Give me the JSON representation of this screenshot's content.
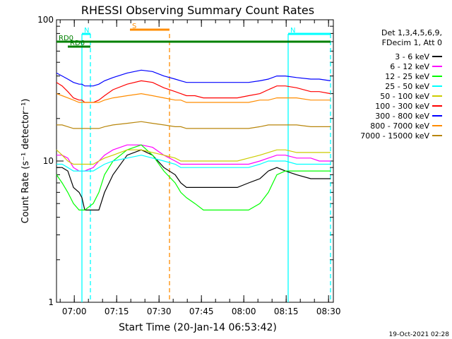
{
  "chart_data": {
    "type": "line",
    "title": "RHESSI Observing Summary Count Rates",
    "xlabel": "Start Time (20-Jan-14 06:53:42)",
    "ylabel": "Count Rate (s⁻¹ detector⁻¹)",
    "y_scale": "log",
    "ylim": [
      1,
      100
    ],
    "xlim_minutes_after_0653_42": [
      0,
      98
    ],
    "x_tick_labels": [
      "07:00",
      "07:15",
      "07:30",
      "07:45",
      "08:00",
      "08:15",
      "08:30"
    ],
    "y_tick_labels": [
      "1",
      "10",
      "100"
    ],
    "background": "#ffffff",
    "axis_color": "#000000",
    "legend": {
      "placement": "right",
      "header_lines": [
        "Det 1,3,4,5,6,9,",
        "FDecim 1, Att 0"
      ]
    },
    "series": [
      {
        "name": "3 - 6 keV",
        "color": "#000000",
        "x": [
          0,
          2,
          4,
          6,
          8,
          9,
          10,
          13,
          15,
          17,
          20,
          25,
          30,
          34,
          38,
          42,
          44,
          46,
          49,
          52,
          56,
          60,
          64,
          68,
          72,
          75,
          78,
          81,
          85,
          90,
          93,
          97
        ],
        "y": [
          9,
          9,
          8.5,
          6.5,
          6,
          5.5,
          4.5,
          4.5,
          4.5,
          6,
          8,
          11,
          12,
          11,
          9,
          8,
          7,
          6.5,
          6.5,
          6.5,
          6.5,
          6.5,
          6.5,
          7,
          7.5,
          8.5,
          9,
          8.5,
          8,
          7.5,
          7.5,
          7.5
        ]
      },
      {
        "name": "6 - 12 keV",
        "color": "#ff00ff",
        "x": [
          0,
          2,
          4,
          6,
          8,
          9,
          10,
          13,
          15,
          17,
          20,
          25,
          30,
          34,
          38,
          42,
          44,
          46,
          49,
          52,
          56,
          60,
          64,
          68,
          72,
          75,
          78,
          81,
          85,
          90,
          93,
          97
        ],
        "y": [
          11,
          11,
          10.5,
          9,
          8.5,
          8.5,
          8.5,
          9,
          10,
          11,
          12,
          13,
          13,
          12.5,
          11,
          10,
          9.5,
          9.5,
          9.5,
          9.5,
          9.5,
          9.5,
          9.5,
          9.5,
          10,
          10.5,
          11,
          11,
          10.5,
          10.5,
          10,
          10
        ]
      },
      {
        "name": "12 - 25 keV",
        "color": "#00ff00",
        "x": [
          0,
          2,
          4,
          6,
          8,
          9,
          10,
          13,
          15,
          17,
          20,
          25,
          30,
          34,
          38,
          42,
          44,
          46,
          49,
          52,
          56,
          60,
          64,
          68,
          72,
          75,
          78,
          81,
          85,
          90,
          93,
          97
        ],
        "y": [
          8,
          7,
          6,
          5,
          4.5,
          4.5,
          4.5,
          5,
          6,
          8,
          10,
          12,
          13,
          11,
          8.5,
          7,
          6,
          5.5,
          5,
          4.5,
          4.5,
          4.5,
          4.5,
          4.5,
          5,
          6,
          8,
          8.5,
          8.5,
          8.5,
          8.5,
          8.5
        ]
      },
      {
        "name": "25 - 50 keV",
        "color": "#00ffff",
        "x": [
          0,
          2,
          4,
          6,
          8,
          9,
          10,
          13,
          15,
          17,
          20,
          25,
          30,
          34,
          38,
          42,
          44,
          46,
          49,
          52,
          56,
          60,
          64,
          68,
          72,
          75,
          78,
          81,
          85,
          90,
          93,
          97
        ],
        "y": [
          9.5,
          9.5,
          9,
          8.5,
          8.5,
          8.5,
          8.5,
          8.5,
          9,
          9.5,
          10,
          10.5,
          11,
          10.5,
          10,
          9.5,
          9,
          9,
          9,
          9,
          9,
          9,
          9,
          9,
          9.5,
          10,
          10,
          10,
          9.5,
          9.5,
          9.5,
          9.5
        ]
      },
      {
        "name": "50 - 100 keV",
        "color": "#cccc00",
        "x": [
          0,
          2,
          4,
          6,
          8,
          9,
          10,
          13,
          15,
          17,
          20,
          25,
          30,
          34,
          38,
          42,
          44,
          46,
          49,
          52,
          56,
          60,
          64,
          68,
          72,
          75,
          78,
          81,
          85,
          90,
          93,
          97
        ],
        "y": [
          12,
          11,
          10,
          9.5,
          9.5,
          9.5,
          9.5,
          9.5,
          10,
          10.5,
          11,
          12,
          12,
          11.5,
          11,
          10.5,
          10,
          10,
          10,
          10,
          10,
          10,
          10,
          10.5,
          11,
          11.5,
          12,
          12,
          11.5,
          11.5,
          11.5,
          11.5
        ]
      },
      {
        "name": "100 - 300 keV",
        "color": "#ff0000",
        "x": [
          0,
          2,
          4,
          6,
          8,
          9,
          10,
          13,
          15,
          17,
          20,
          25,
          30,
          34,
          38,
          42,
          44,
          46,
          49,
          52,
          56,
          60,
          64,
          68,
          72,
          75,
          78,
          81,
          85,
          90,
          93,
          97
        ],
        "y": [
          36,
          34,
          31,
          28,
          27,
          27,
          26,
          26,
          27,
          29,
          32,
          35,
          37,
          36,
          33,
          31,
          30,
          29,
          29,
          28,
          28,
          28,
          28,
          29,
          30,
          32,
          34,
          34,
          33,
          31,
          31,
          30
        ]
      },
      {
        "name": "300 - 800 keV",
        "color": "#0000ff",
        "x": [
          0,
          2,
          4,
          6,
          8,
          9,
          10,
          13,
          15,
          17,
          20,
          25,
          30,
          34,
          38,
          42,
          44,
          46,
          49,
          52,
          56,
          60,
          64,
          68,
          72,
          75,
          78,
          81,
          85,
          90,
          93,
          97
        ],
        "y": [
          42,
          40,
          38,
          36,
          35,
          35,
          34,
          34,
          35,
          37,
          39,
          42,
          44,
          43,
          40,
          38,
          37,
          36,
          36,
          36,
          36,
          36,
          36,
          36,
          37,
          38,
          40,
          40,
          39,
          38,
          38,
          37
        ]
      },
      {
        "name": "800 - 7000 keV",
        "color": "#ff8c00",
        "x": [
          0,
          2,
          4,
          6,
          8,
          9,
          10,
          13,
          15,
          17,
          20,
          25,
          30,
          34,
          38,
          42,
          44,
          46,
          49,
          52,
          56,
          60,
          64,
          68,
          72,
          75,
          78,
          81,
          85,
          90,
          93,
          97
        ],
        "y": [
          30,
          29,
          28,
          27,
          26,
          26,
          26,
          26,
          26,
          27,
          28,
          29,
          30,
          29,
          28,
          27,
          27,
          26,
          26,
          26,
          26,
          26,
          26,
          26,
          27,
          27,
          28,
          28,
          28,
          27,
          27,
          27
        ]
      },
      {
        "name": "7000 - 15000 keV",
        "color": "#b8860b",
        "x": [
          0,
          2,
          4,
          6,
          8,
          9,
          10,
          13,
          15,
          17,
          20,
          25,
          30,
          34,
          38,
          42,
          44,
          46,
          49,
          52,
          56,
          60,
          64,
          68,
          72,
          75,
          78,
          81,
          85,
          90,
          93,
          97
        ],
        "y": [
          18,
          18,
          17.5,
          17,
          17,
          17,
          17,
          17,
          17,
          17.5,
          18,
          18.5,
          19,
          18.5,
          18,
          17.5,
          17.5,
          17,
          17,
          17,
          17,
          17,
          17,
          17,
          17.5,
          18,
          18,
          18,
          18,
          17.5,
          17.5,
          17.5
        ]
      }
    ],
    "state_bars": [
      {
        "label": "S",
        "color": "#ff8c00",
        "x_start_min": 26,
        "x_end_min": 40
      },
      {
        "label": "N",
        "color": "#00ffff",
        "x_start_min": 9,
        "x_end_min": 12
      },
      {
        "label": "N",
        "color": "#00ffff",
        "x_start_min": 82,
        "x_end_min": 97
      },
      {
        "label": "RD0",
        "color": "#008000",
        "x_start_min": 0,
        "x_end_min": 97
      },
      {
        "label": "RD6",
        "color": "#008000",
        "x_start_min": 4,
        "x_end_min": 12
      }
    ],
    "vertical_markers": [
      {
        "color": "#00ffff",
        "x_min": 9,
        "style": "solid"
      },
      {
        "color": "#00ffff",
        "x_min": 12,
        "style": "dashed"
      },
      {
        "color": "#ff8c00",
        "x_min": 40,
        "style": "dashed"
      },
      {
        "color": "#00ffff",
        "x_min": 82,
        "style": "solid"
      },
      {
        "color": "#00ffff",
        "x_min": 97,
        "style": "dashed"
      }
    ],
    "footer_timestamp": "19-Oct-2021 02:28"
  }
}
